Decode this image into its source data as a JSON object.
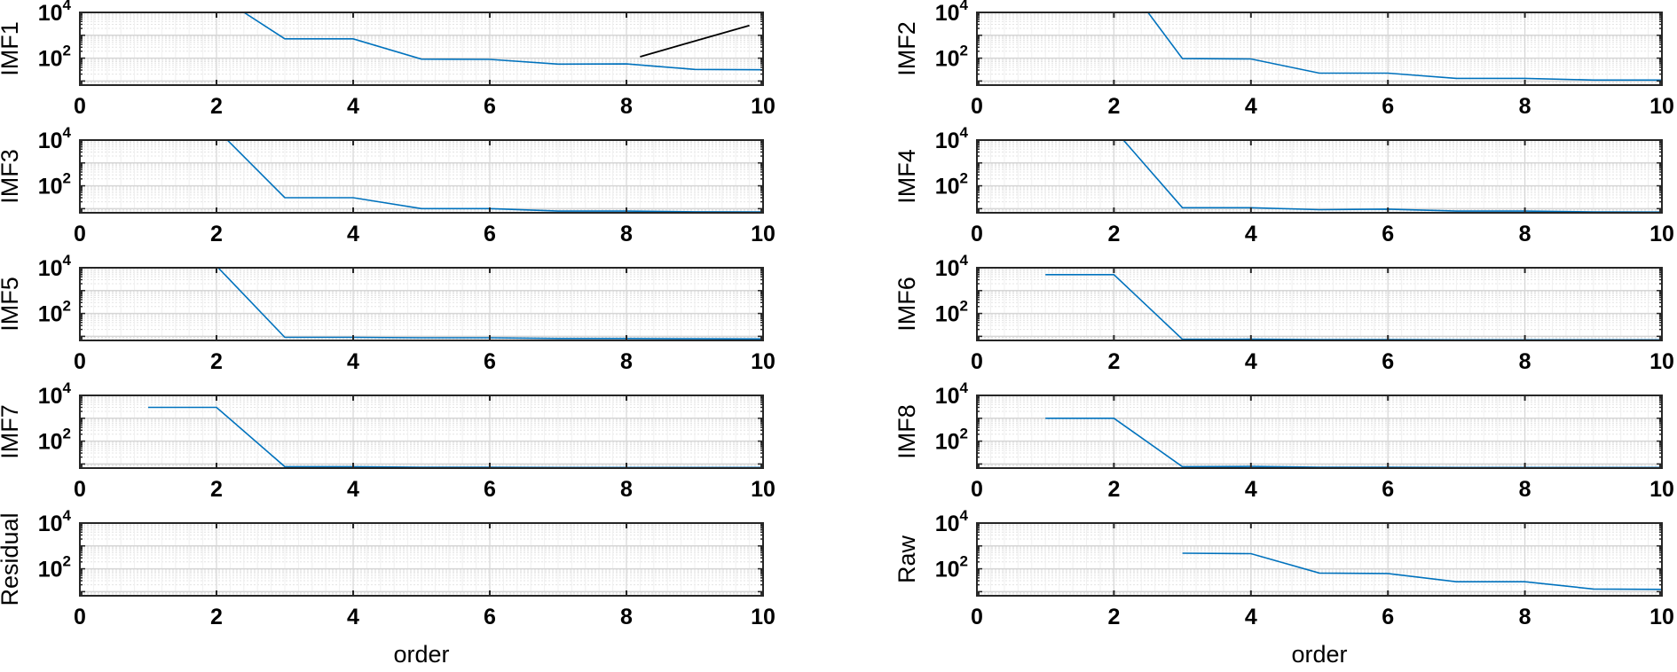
{
  "chart_data": {
    "type": "line",
    "title": "",
    "layout": {
      "rows": 5,
      "cols": 2,
      "grid": true,
      "minor_grid": true,
      "yscale": "log",
      "legend": "none"
    },
    "xlim": [
      0,
      10
    ],
    "ylim": [
      6.6,
      10000
    ],
    "xticks": [
      "0",
      "2",
      "4",
      "6",
      "8",
      "10"
    ],
    "yticks": [
      {
        "exp": "4",
        "base": "10",
        "value": 10000
      },
      {
        "exp": "2",
        "base": "10",
        "value": 100
      }
    ],
    "xlabel": "order",
    "line_color": "#0072BD",
    "panels": [
      {
        "id": "imf1",
        "ylabel": "IMF1",
        "show_xlabel": false,
        "series": [
          {
            "name": "IMF1",
            "color": "#0072BD",
            "x": [
              2,
              3,
              4,
              5,
              6,
              7,
              8,
              9,
              10
            ],
            "y": [
              60000,
              700,
              700,
              90,
              88,
              55,
              56,
              32,
              31
            ]
          },
          {
            "name": "reference-slope",
            "color": "#000000",
            "x": [
              8.2,
              9.8
            ],
            "y": [
              115,
              2700
            ]
          }
        ]
      },
      {
        "id": "imf2",
        "ylabel": "IMF2",
        "show_xlabel": false,
        "series": [
          {
            "name": "IMF2",
            "color": "#0072BD",
            "x": [
              2,
              3,
              4,
              5,
              6,
              7,
              8,
              9,
              10
            ],
            "y": [
              1000000,
              95,
              92,
              22,
              22,
              13,
              13,
              11,
              11
            ]
          }
        ]
      },
      {
        "id": "imf3",
        "ylabel": "IMF3",
        "show_xlabel": false,
        "series": [
          {
            "name": "IMF3",
            "color": "#0072BD",
            "x": [
              2,
              3,
              4,
              5,
              6,
              7,
              8,
              9,
              10
            ],
            "y": [
              30000,
              30,
              30,
              10,
              10,
              7.8,
              7.8,
              7.3,
              7.2
            ]
          }
        ]
      },
      {
        "id": "imf4",
        "ylabel": "IMF4",
        "show_xlabel": false,
        "series": [
          {
            "name": "IMF4",
            "color": "#0072BD",
            "x": [
              2,
              3,
              4,
              5,
              6,
              7,
              8,
              9,
              10
            ],
            "y": [
              30000,
              11,
              11,
              9,
              9.5,
              7.8,
              7.8,
              7.2,
              7.1
            ]
          }
        ]
      },
      {
        "id": "imf5",
        "ylabel": "IMF5",
        "show_xlabel": false,
        "series": [
          {
            "name": "IMF5",
            "color": "#0072BD",
            "x": [
              2,
              3,
              4,
              5,
              6,
              7,
              8,
              9,
              10
            ],
            "y": [
              12000,
              9,
              9,
              8.6,
              8.6,
              8,
              8,
              7.8,
              7.7
            ]
          }
        ]
      },
      {
        "id": "imf6",
        "ylabel": "IMF6",
        "show_xlabel": false,
        "series": [
          {
            "name": "IMF6",
            "color": "#0072BD",
            "x": [
              1,
              2,
              3,
              4,
              5,
              6,
              7,
              8,
              9,
              10
            ],
            "y": [
              5000,
              5000,
              7.4,
              7.5,
              7.2,
              7.2,
              7.0,
              7.0,
              7.0,
              7.0
            ]
          }
        ]
      },
      {
        "id": "imf7",
        "ylabel": "IMF7",
        "show_xlabel": false,
        "series": [
          {
            "name": "IMF7",
            "color": "#0072BD",
            "x": [
              1,
              2,
              3,
              4,
              5,
              6,
              7,
              8,
              9,
              10
            ],
            "y": [
              3000,
              3000,
              7.6,
              7.6,
              7.2,
              7.2,
              7.0,
              7.0,
              7.0,
              7.0
            ]
          }
        ]
      },
      {
        "id": "imf8",
        "ylabel": "IMF8",
        "show_xlabel": false,
        "series": [
          {
            "name": "IMF8",
            "color": "#0072BD",
            "x": [
              1,
              2,
              3,
              4,
              5,
              6,
              7,
              8,
              9,
              10
            ],
            "y": [
              1000,
              1000,
              7.6,
              7.8,
              7.2,
              7.2,
              7.0,
              7.0,
              7.0,
              7.0
            ]
          }
        ]
      },
      {
        "id": "residual",
        "ylabel": "Residual",
        "show_xlabel": true,
        "series": [
          {
            "name": "Residual",
            "color": "#0072BD",
            "x": [
              1,
              2,
              3,
              4,
              5,
              6,
              7,
              8,
              9,
              10
            ],
            "y": [
              6.6,
              6.6,
              6.6,
              6.6,
              6.6,
              6.6,
              6.6,
              6.6,
              6.6,
              6.6
            ]
          }
        ]
      },
      {
        "id": "raw",
        "ylabel": "Raw",
        "show_xlabel": true,
        "series": [
          {
            "name": "Raw",
            "color": "#0072BD",
            "x": [
              3,
              4,
              5,
              6,
              7,
              8,
              9,
              10
            ],
            "y": [
              480,
              460,
              65,
              62,
              27,
              27,
              13,
              12.5
            ]
          }
        ]
      }
    ]
  }
}
